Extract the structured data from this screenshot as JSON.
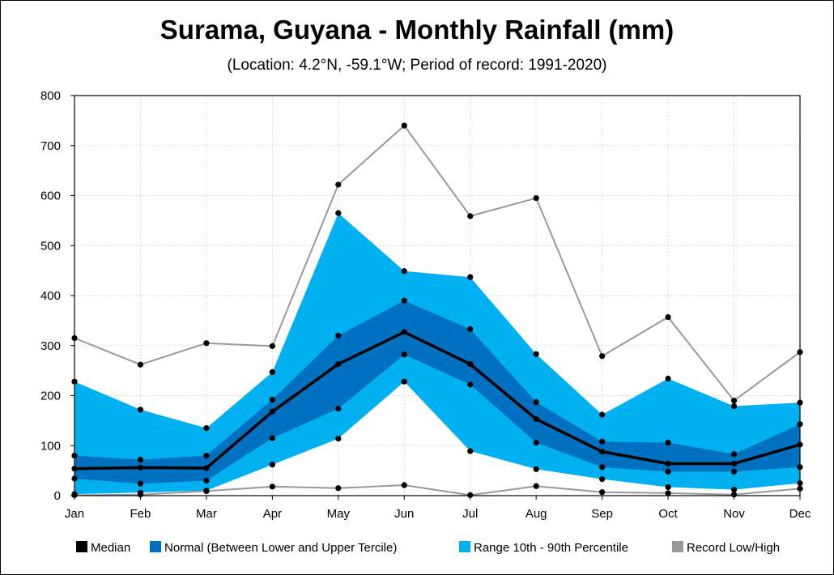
{
  "chart_data": {
    "type": "area",
    "title": "Surama, Guyana - Monthly Rainfall (mm)",
    "subtitle": "(Location: 4.2°N, -59.1°W; Period of record: 1991-2020)",
    "categories": [
      "Jan",
      "Feb",
      "Mar",
      "Apr",
      "May",
      "Jun",
      "Jul",
      "Aug",
      "Sep",
      "Oct",
      "Nov",
      "Dec"
    ],
    "ylim": [
      0,
      800
    ],
    "yticks": [
      0,
      100,
      200,
      300,
      400,
      500,
      600,
      700,
      800
    ],
    "grid": true,
    "legend_position": "bottom",
    "series": [
      {
        "name": "Median",
        "color": "#000000",
        "values": [
          54,
          56,
          55,
          168,
          263,
          327,
          263,
          153,
          88,
          64,
          64,
          102
        ]
      },
      {
        "name": "Normal (Between Lower and Upper Tercile)",
        "color": "#0070C0",
        "lower": [
          34,
          24,
          30,
          115,
          174,
          282,
          222,
          106,
          57,
          48,
          48,
          57
        ],
        "upper": [
          80,
          72,
          80,
          192,
          320,
          390,
          333,
          187,
          108,
          106,
          83,
          143
        ]
      },
      {
        "name": "Range 10th - 90th Percentile",
        "color": "#00B0F0",
        "lower": [
          3,
          6,
          10,
          62,
          114,
          228,
          89,
          53,
          33,
          17,
          12,
          25
        ],
        "upper": [
          228,
          172,
          135,
          247,
          565,
          449,
          437,
          283,
          162,
          234,
          179,
          186
        ]
      },
      {
        "name": "Record Low/High",
        "color": "#999999",
        "lower": [
          1,
          2,
          9,
          18,
          15,
          21,
          1,
          19,
          7,
          5,
          2,
          14
        ],
        "upper": [
          315,
          262,
          305,
          299,
          622,
          740,
          559,
          595,
          279,
          357,
          190,
          287
        ]
      }
    ]
  }
}
